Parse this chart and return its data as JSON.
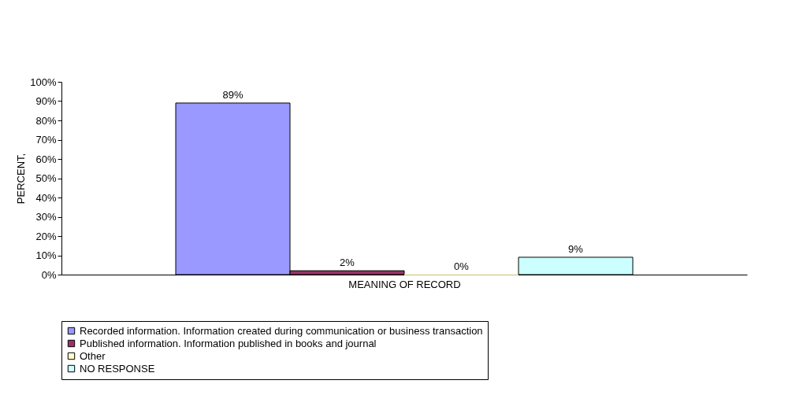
{
  "chart_data": {
    "type": "bar",
    "xlabel": "MEANING OF RECORD",
    "ylabel": "PERCENT,",
    "categories": [
      null
    ],
    "series": [
      {
        "name": "Recorded information. Information created during communication or business transaction",
        "color": "#9999ff",
        "values": [
          89
        ],
        "value_labels": [
          "89%"
        ]
      },
      {
        "name": "Published information. Information published in books and journal",
        "color": "#993366",
        "values": [
          2
        ],
        "value_labels": [
          "2%"
        ]
      },
      {
        "name": "Other",
        "color": "#ffffcc",
        "values": [
          0
        ],
        "value_labels": [
          "0%"
        ]
      },
      {
        "name": "NO RESPONSE",
        "color": "#ccffff",
        "values": [
          9
        ],
        "value_labels": [
          "9%"
        ]
      }
    ],
    "ylim": [
      0,
      100
    ],
    "yticks": [
      {
        "value": 0,
        "label": "0%"
      },
      {
        "value": 10,
        "label": "10%"
      },
      {
        "value": 20,
        "label": "20%"
      },
      {
        "value": 30,
        "label": "30%"
      },
      {
        "value": 40,
        "label": "40%"
      },
      {
        "value": 50,
        "label": "50%"
      },
      {
        "value": 60,
        "label": "60%"
      },
      {
        "value": 70,
        "label": "70%"
      },
      {
        "value": 80,
        "label": "80%"
      },
      {
        "value": 90,
        "label": "90%"
      },
      {
        "value": 100,
        "label": "100%"
      }
    ],
    "grid": false,
    "legend": "bottom"
  }
}
